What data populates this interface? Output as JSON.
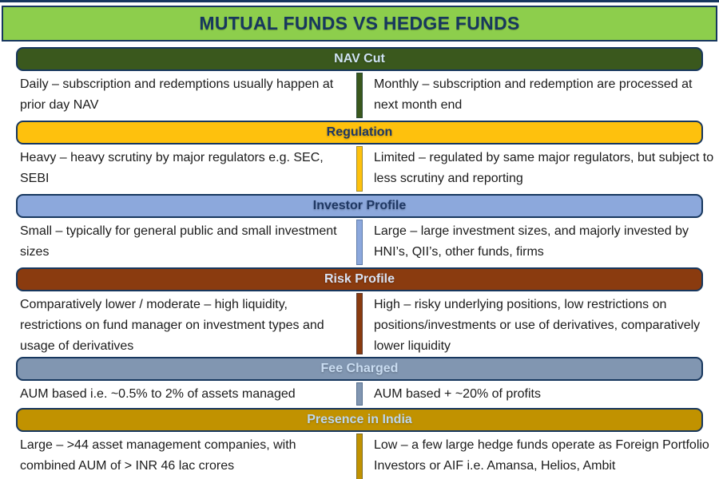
{
  "title": "MUTUAL FUNDS VS HEDGE FUNDS",
  "theme": {
    "title_bg": "#8DCE4C",
    "title_text": "#17375E",
    "border": "#17375E",
    "body_text": "#1B1B1B"
  },
  "sections": [
    {
      "label": "NAV Cut",
      "mutual_funds": "Daily – subscription and redemptions usually happen at prior day NAV",
      "hedge_funds": "Monthly – subscription and redemption are processed at next month end",
      "colors": {
        "header_bg": "#3A581D",
        "header_text": "#CFE2F3",
        "divider": "#3A581D"
      }
    },
    {
      "label": "Regulation",
      "mutual_funds": "Heavy – heavy scrutiny by major regulators e.g. SEC, SEBI",
      "hedge_funds": "Limited – regulated by same major regulators, but subject to less scrutiny and reporting",
      "colors": {
        "header_bg": "#FEC10D",
        "header_text": "#1F3864",
        "divider": "#FEC10D"
      }
    },
    {
      "label": "Investor Profile",
      "mutual_funds": "Small – typically for general public and small investment sizes",
      "hedge_funds": "Large – large investment sizes, and majorly invested by HNI’s, QII’s, other funds, firms",
      "colors": {
        "header_bg": "#8CA8DC",
        "header_text": "#1F3864",
        "divider": "#8CA8DC"
      }
    },
    {
      "label": "Risk Profile",
      "mutual_funds": "Comparatively lower / moderate – high liquidity, restrictions on fund manager on investment types and usage of derivatives",
      "hedge_funds": "High – risky underlying positions, low restrictions on positions/investments or use of derivatives, comparatively lower liquidity",
      "colors": {
        "header_bg": "#8A3B0F",
        "header_text": "#D9E2F3",
        "divider": "#8A3B0F"
      }
    },
    {
      "label": "Fee Charged",
      "mutual_funds": "AUM based i.e. ~0.5% to 2% of assets managed",
      "hedge_funds": "AUM based + ~20% of profits",
      "colors": {
        "header_bg": "#8196B1",
        "header_text": "#CADDF2",
        "divider": "#8196B1"
      }
    },
    {
      "label": "Presence in India",
      "mutual_funds": "Large – >44 asset management companies, with combined AUM of > INR 46 lac crores",
      "hedge_funds": "Low – a few large hedge funds operate as Foreign Portfolio Investors or AIF i.e. Amansa, Helios, Ambit",
      "colors": {
        "header_bg": "#C19200",
        "header_text": "#BDD7EE",
        "divider": "#C19200"
      }
    }
  ]
}
